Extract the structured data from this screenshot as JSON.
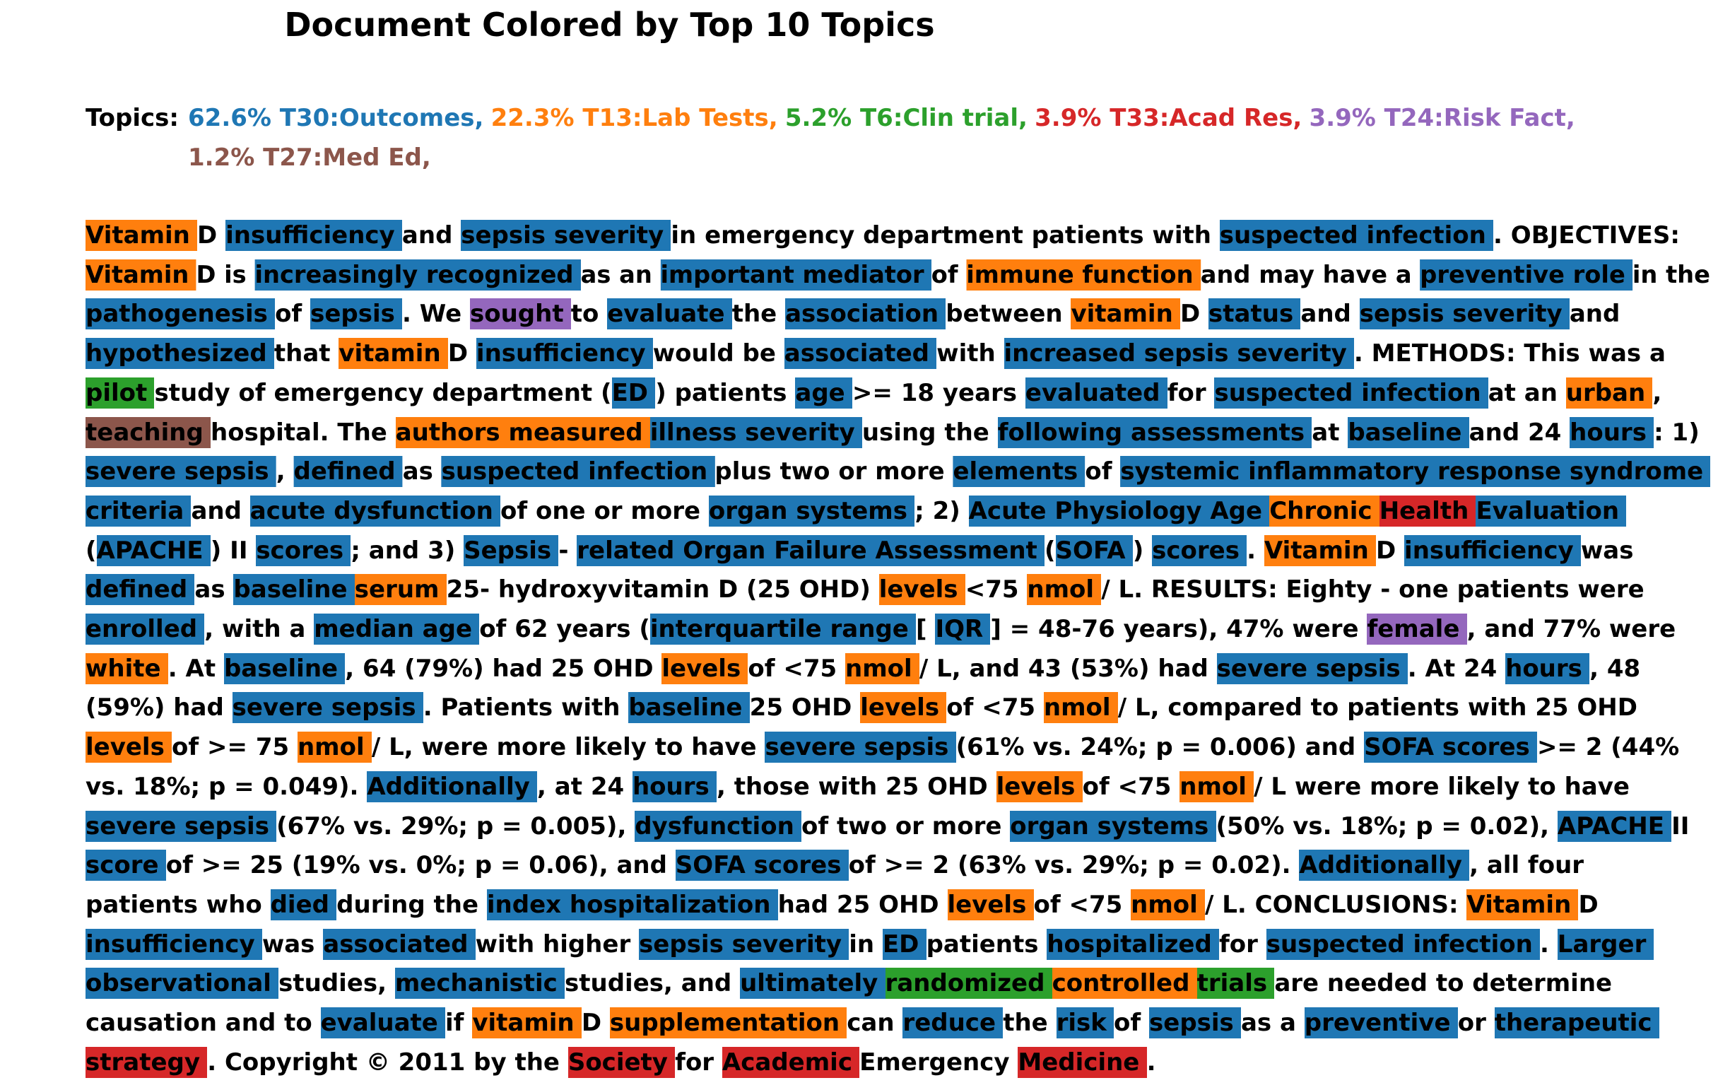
{
  "title": "Document Colored by Top 10 Topics",
  "topics": {
    "label": "Topics:",
    "rows": [
      [
        {
          "text": "62.6% T30:Outcomes,",
          "color": "#1f77b4"
        },
        {
          "text": "22.3% T13:Lab Tests,",
          "color": "#ff7f0e"
        },
        {
          "text": "5.2% T6:Clin trial,",
          "color": "#2ca02c"
        },
        {
          "text": "3.9% T33:Acad Res,",
          "color": "#d62728"
        },
        {
          "text": "3.9% T24:Risk Fact,",
          "color": "#9467bd"
        }
      ],
      [
        {
          "text": "1.2% T27:Med Ed,",
          "color": "#8c564b"
        }
      ]
    ]
  },
  "document": {
    "lines": [
      [
        {
          "text": "Vitamin",
          "color": "#ff7f0e"
        },
        "D ",
        {
          "text": "insufficiency",
          "color": "#1f77b4"
        },
        "and ",
        {
          "text": "sepsis severity",
          "color": "#1f77b4"
        },
        "in emergency department patients with ",
        {
          "text": "suspected infection",
          "color": "#1f77b4"
        },
        ". OBJECTIVES:"
      ],
      [
        {
          "text": "Vitamin",
          "color": "#ff7f0e"
        },
        "D is ",
        {
          "text": "increasingly recognized",
          "color": "#1f77b4"
        },
        "as an ",
        {
          "text": "important mediator",
          "color": "#1f77b4"
        },
        "of ",
        {
          "text": "immune function",
          "color": "#ff7f0e"
        },
        "and may have a ",
        {
          "text": "preventive role",
          "color": "#1f77b4"
        },
        "in the"
      ],
      [
        {
          "text": "pathogenesis",
          "color": "#1f77b4"
        },
        "of ",
        {
          "text": "sepsis",
          "color": "#1f77b4"
        },
        ". We ",
        {
          "text": "sought",
          "color": "#9467bd"
        },
        "to ",
        {
          "text": "evaluate",
          "color": "#1f77b4"
        },
        "the ",
        {
          "text": "association",
          "color": "#1f77b4"
        },
        "between ",
        {
          "text": "vitamin",
          "color": "#ff7f0e"
        },
        "D ",
        {
          "text": "status",
          "color": "#1f77b4"
        },
        "and ",
        {
          "text": "sepsis severity",
          "color": "#1f77b4"
        },
        "and"
      ],
      [
        {
          "text": "hypothesized",
          "color": "#1f77b4"
        },
        "that ",
        {
          "text": "vitamin",
          "color": "#ff7f0e"
        },
        "D ",
        {
          "text": "insufficiency",
          "color": "#1f77b4"
        },
        "would be ",
        {
          "text": "associated",
          "color": "#1f77b4"
        },
        "with ",
        {
          "text": "increased sepsis severity",
          "color": "#1f77b4"
        },
        ". METHODS: This was a"
      ],
      [
        {
          "text": "pilot",
          "color": "#2ca02c"
        },
        "study of emergency department (",
        {
          "text": "ED",
          "color": "#1f77b4"
        },
        ") patients ",
        {
          "text": "age",
          "color": "#1f77b4"
        },
        ">= 18 years ",
        {
          "text": "evaluated",
          "color": "#1f77b4"
        },
        "for ",
        {
          "text": "suspected infection",
          "color": "#1f77b4"
        },
        "at an ",
        {
          "text": "urban",
          "color": "#ff7f0e"
        },
        ","
      ],
      [
        {
          "text": "teaching",
          "color": "#8c564b"
        },
        "hospital. The ",
        {
          "text": "authors measured",
          "color": "#ff7f0e"
        },
        {
          "text": "illness severity",
          "color": "#1f77b4"
        },
        "using the ",
        {
          "text": "following assessments",
          "color": "#1f77b4"
        },
        "at ",
        {
          "text": "baseline",
          "color": "#1f77b4"
        },
        "and 24 ",
        {
          "text": "hours",
          "color": "#1f77b4"
        },
        ": 1)"
      ],
      [
        {
          "text": "severe sepsis",
          "color": "#1f77b4"
        },
        ", ",
        {
          "text": "defined",
          "color": "#1f77b4"
        },
        "as ",
        {
          "text": "suspected infection",
          "color": "#1f77b4"
        },
        "plus two or more ",
        {
          "text": "elements",
          "color": "#1f77b4"
        },
        "of ",
        {
          "text": "systemic inflammatory response syndrome",
          "color": "#1f77b4"
        }
      ],
      [
        {
          "text": "criteria",
          "color": "#1f77b4"
        },
        "and ",
        {
          "text": "acute dysfunction",
          "color": "#1f77b4"
        },
        "of one or more ",
        {
          "text": "organ systems",
          "color": "#1f77b4"
        },
        "; 2) ",
        {
          "text": "Acute Physiology Age",
          "color": "#1f77b4"
        },
        {
          "text": "Chronic",
          "color": "#ff7f0e"
        },
        {
          "text": "Health",
          "color": "#d62728"
        },
        {
          "text": "Evaluation",
          "color": "#1f77b4"
        }
      ],
      [
        "(",
        {
          "text": "APACHE",
          "color": "#1f77b4"
        },
        ") II ",
        {
          "text": "scores",
          "color": "#1f77b4"
        },
        "; and 3) ",
        {
          "text": "Sepsis",
          "color": "#1f77b4"
        },
        "- ",
        {
          "text": "related Organ Failure Assessment",
          "color": "#1f77b4"
        },
        "(",
        {
          "text": "SOFA",
          "color": "#1f77b4"
        },
        ") ",
        {
          "text": "scores",
          "color": "#1f77b4"
        },
        ". ",
        {
          "text": "Vitamin",
          "color": "#ff7f0e"
        },
        "D ",
        {
          "text": "insufficiency",
          "color": "#1f77b4"
        },
        "was"
      ],
      [
        {
          "text": "defined",
          "color": "#1f77b4"
        },
        "as ",
        {
          "text": "baseline",
          "color": "#1f77b4"
        },
        {
          "text": "serum",
          "color": "#ff7f0e"
        },
        "25- hydroxyvitamin D (25 OHD) ",
        {
          "text": "levels",
          "color": "#ff7f0e"
        },
        "<75 ",
        {
          "text": "nmol",
          "color": "#ff7f0e"
        },
        "/ L. RESULTS: Eighty - one patients were"
      ],
      [
        {
          "text": "enrolled",
          "color": "#1f77b4"
        },
        ", with a ",
        {
          "text": "median age",
          "color": "#1f77b4"
        },
        "of 62 years (",
        {
          "text": "interquartile range",
          "color": "#1f77b4"
        },
        "[ ",
        {
          "text": "IQR",
          "color": "#1f77b4"
        },
        "] = 48-76 years), 47% were ",
        {
          "text": "female",
          "color": "#9467bd"
        },
        ", and 77% were"
      ],
      [
        {
          "text": "white",
          "color": "#ff7f0e"
        },
        ". At ",
        {
          "text": "baseline",
          "color": "#1f77b4"
        },
        ", 64 (79%) had 25 OHD ",
        {
          "text": "levels",
          "color": "#ff7f0e"
        },
        "of <75 ",
        {
          "text": "nmol",
          "color": "#ff7f0e"
        },
        "/ L, and 43 (53%) had ",
        {
          "text": "severe sepsis",
          "color": "#1f77b4"
        },
        ". At 24 ",
        {
          "text": "hours",
          "color": "#1f77b4"
        },
        ", 48"
      ],
      [
        "(59%) had ",
        {
          "text": "severe sepsis",
          "color": "#1f77b4"
        },
        ". Patients with ",
        {
          "text": "baseline",
          "color": "#1f77b4"
        },
        "25 OHD ",
        {
          "text": "levels",
          "color": "#ff7f0e"
        },
        "of <75 ",
        {
          "text": "nmol",
          "color": "#ff7f0e"
        },
        "/ L, compared to patients with 25 OHD"
      ],
      [
        {
          "text": "levels",
          "color": "#ff7f0e"
        },
        "of >= 75 ",
        {
          "text": "nmol",
          "color": "#ff7f0e"
        },
        "/ L, were more likely to have ",
        {
          "text": "severe sepsis",
          "color": "#1f77b4"
        },
        "(61% vs. 24%; p = 0.006) and ",
        {
          "text": "SOFA scores",
          "color": "#1f77b4"
        },
        ">= 2 (44%"
      ],
      [
        "vs. 18%; p = 0.049). ",
        {
          "text": "Additionally",
          "color": "#1f77b4"
        },
        ", at 24 ",
        {
          "text": "hours",
          "color": "#1f77b4"
        },
        ", those with 25 OHD ",
        {
          "text": "levels",
          "color": "#ff7f0e"
        },
        "of <75 ",
        {
          "text": "nmol",
          "color": "#ff7f0e"
        },
        "/ L were more likely to have"
      ],
      [
        {
          "text": "severe sepsis",
          "color": "#1f77b4"
        },
        "(67% vs. 29%; p = 0.005), ",
        {
          "text": "dysfunction",
          "color": "#1f77b4"
        },
        "of two or more ",
        {
          "text": "organ systems",
          "color": "#1f77b4"
        },
        "(50% vs. 18%; p = 0.02), ",
        {
          "text": "APACHE",
          "color": "#1f77b4"
        },
        "II"
      ],
      [
        {
          "text": "score",
          "color": "#1f77b4"
        },
        "of >= 25 (19% vs. 0%; p = 0.06), and ",
        {
          "text": "SOFA scores",
          "color": "#1f77b4"
        },
        "of >= 2 (63% vs. 29%; p = 0.02). ",
        {
          "text": "Additionally",
          "color": "#1f77b4"
        },
        ", all four"
      ],
      [
        "patients who ",
        {
          "text": "died",
          "color": "#1f77b4"
        },
        "during the ",
        {
          "text": "index hospitalization",
          "color": "#1f77b4"
        },
        "had 25 OHD ",
        {
          "text": "levels",
          "color": "#ff7f0e"
        },
        "of <75 ",
        {
          "text": "nmol",
          "color": "#ff7f0e"
        },
        "/ L. CONCLUSIONS: ",
        {
          "text": "Vitamin",
          "color": "#ff7f0e"
        },
        "D"
      ],
      [
        {
          "text": "insufficiency",
          "color": "#1f77b4"
        },
        "was ",
        {
          "text": "associated",
          "color": "#1f77b4"
        },
        "with higher ",
        {
          "text": "sepsis severity",
          "color": "#1f77b4"
        },
        "in ",
        {
          "text": "ED",
          "color": "#1f77b4"
        },
        "patients ",
        {
          "text": "hospitalized",
          "color": "#1f77b4"
        },
        "for ",
        {
          "text": "suspected infection",
          "color": "#1f77b4"
        },
        ". ",
        {
          "text": "Larger",
          "color": "#1f77b4"
        }
      ],
      [
        {
          "text": "observational",
          "color": "#1f77b4"
        },
        "studies, ",
        {
          "text": "mechanistic",
          "color": "#1f77b4"
        },
        "studies, and ",
        {
          "text": "ultimately",
          "color": "#1f77b4"
        },
        {
          "text": "randomized",
          "color": "#2ca02c"
        },
        {
          "text": "controlled",
          "color": "#ff7f0e"
        },
        {
          "text": "trials",
          "color": "#2ca02c"
        },
        "are needed to determine"
      ],
      [
        "causation and to ",
        {
          "text": "evaluate",
          "color": "#1f77b4"
        },
        "if ",
        {
          "text": "vitamin",
          "color": "#ff7f0e"
        },
        "D ",
        {
          "text": "supplementation",
          "color": "#ff7f0e"
        },
        "can ",
        {
          "text": "reduce",
          "color": "#1f77b4"
        },
        "the ",
        {
          "text": "risk",
          "color": "#1f77b4"
        },
        "of ",
        {
          "text": "sepsis",
          "color": "#1f77b4"
        },
        "as a ",
        {
          "text": "preventive",
          "color": "#1f77b4"
        },
        "or ",
        {
          "text": "therapeutic",
          "color": "#1f77b4"
        }
      ],
      [
        {
          "text": "strategy",
          "color": "#d62728"
        },
        ". Copyright © 2011 by the ",
        {
          "text": "Society",
          "color": "#d62728"
        },
        "for ",
        {
          "text": "Academic",
          "color": "#d62728"
        },
        "Emergency ",
        {
          "text": "Medicine",
          "color": "#d62728"
        },
        "."
      ]
    ]
  }
}
